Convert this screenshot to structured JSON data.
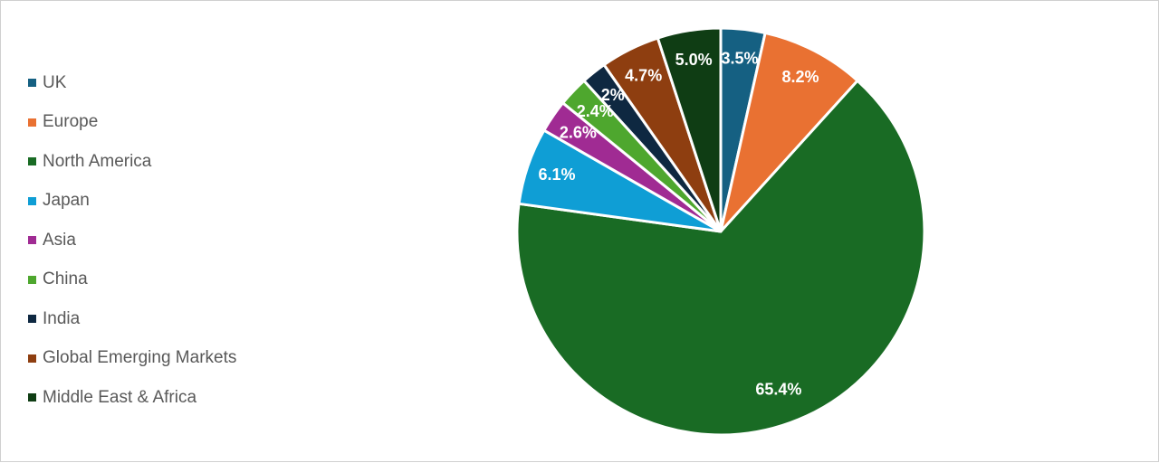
{
  "chart_data": {
    "type": "pie",
    "title": "",
    "legend_position": "left",
    "slices": [
      {
        "name": "UK",
        "value": 3.5,
        "label": "3.5%",
        "color": "#156082"
      },
      {
        "name": "Europe",
        "value": 8.2,
        "label": "8.2%",
        "color": "#E97132"
      },
      {
        "name": "North America",
        "value": 65.4,
        "label": "65.4%",
        "color": "#196B24"
      },
      {
        "name": "Japan",
        "value": 6.1,
        "label": "6.1%",
        "color": "#0F9ED5"
      },
      {
        "name": "Asia",
        "value": 2.6,
        "label": "2.6%",
        "color": "#A02B93"
      },
      {
        "name": "China",
        "value": 2.4,
        "label": "2.4%",
        "color": "#4EA72E"
      },
      {
        "name": "India",
        "value": 2.0,
        "label": "2%",
        "color": "#0E2841"
      },
      {
        "name": "Global Emerging Markets",
        "value": 4.7,
        "label": "4.7%",
        "color": "#8E3E10"
      },
      {
        "name": "Middle East & Africa",
        "value": 5.0,
        "label": "5.0%",
        "color": "#0F3D14"
      }
    ]
  }
}
